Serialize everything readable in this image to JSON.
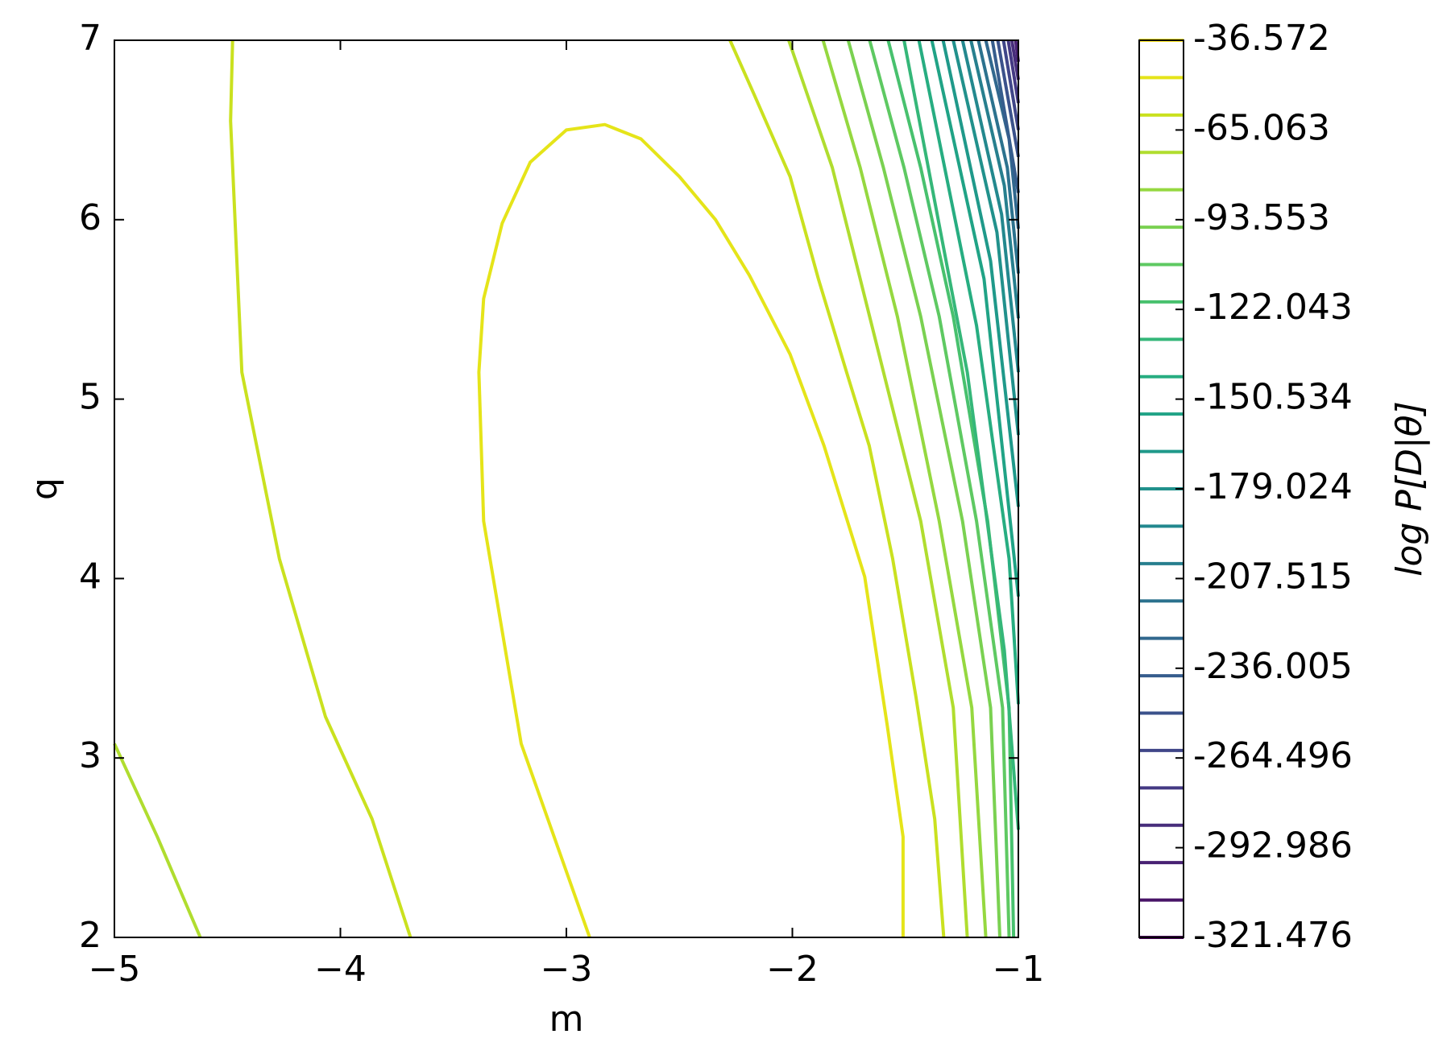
{
  "chart_data": {
    "type": "contour",
    "xlabel": "m",
    "ylabel": "q",
    "colorbar_label": "log  P[D|θ]",
    "xlim": [
      -5,
      -1
    ],
    "ylim": [
      2,
      7
    ],
    "xticks": [
      {
        "value": -5,
        "label": "−5"
      },
      {
        "value": -4,
        "label": "−4"
      },
      {
        "value": -3,
        "label": "−3"
      },
      {
        "value": -2,
        "label": "−2"
      },
      {
        "value": -1,
        "label": "−1"
      }
    ],
    "yticks": [
      2,
      3,
      4,
      5,
      6,
      7
    ],
    "clim": [
      -321.476,
      -36.572
    ],
    "cticks": [
      -36.572,
      -65.063,
      -93.553,
      -122.043,
      -150.534,
      -179.024,
      -207.515,
      -236.005,
      -264.496,
      -292.986,
      -321.476
    ],
    "levels": [
      -36.572,
      -48.443,
      -60.314,
      -72.185,
      -84.056,
      -95.927,
      -107.798,
      -119.669,
      -131.54,
      -143.411,
      -155.282,
      -167.153,
      -179.024,
      -190.895,
      -202.766,
      -214.637,
      -226.508,
      -238.379,
      -250.25,
      -262.121,
      -273.992,
      -285.863,
      -297.734,
      -309.605,
      -321.476
    ],
    "colors": [
      "#fde725",
      "#e5e419",
      "#cae11f",
      "#b0dd2f",
      "#95d840",
      "#7ad151",
      "#5ec962",
      "#48c16e",
      "#35b779",
      "#27ad81",
      "#20a386",
      "#1f998a",
      "#21918c",
      "#23888e",
      "#277f8e",
      "#2c728e",
      "#31688e",
      "#365d8d",
      "#3b528b",
      "#404688",
      "#443983",
      "#472d7b",
      "#482173",
      "#481467",
      "#440154"
    ],
    "contours": [
      {
        "level": -48.443,
        "x": [
          -2.897,
          -3.2,
          -3.366,
          -3.387,
          -3.366,
          -3.284,
          -3.16,
          -3.0,
          -2.83,
          -2.67,
          -2.5,
          -2.34,
          -2.19,
          -2.01,
          -1.86,
          -1.68,
          -1.58,
          -1.51,
          -1.51
        ],
        "y": [
          2,
          3.08,
          4.32,
          5.15,
          5.56,
          5.98,
          6.32,
          6.5,
          6.53,
          6.45,
          6.24,
          6.0,
          5.69,
          5.25,
          4.74,
          4.01,
          3.18,
          2.56,
          2
        ]
      },
      {
        "level": -60.314,
        "x": [
          -4.477,
          -4.486,
          -4.436,
          -4.27,
          -4.066,
          -3.86,
          -3.69
        ],
        "y": [
          7,
          6.55,
          5.15,
          4.11,
          3.23,
          2.66,
          2
        ]
      },
      {
        "level": -60.314,
        "x": [
          -2.276,
          -2.17,
          -2.01,
          -1.885,
          -1.76,
          -1.66,
          -1.556,
          -1.453,
          -1.37,
          -1.33
        ],
        "y": [
          7,
          6.7,
          6.24,
          5.67,
          5.15,
          4.74,
          4.11,
          3.34,
          2.66,
          2
        ]
      },
      {
        "level": -72.185,
        "x": [
          -5,
          -4.81,
          -4.62
        ],
        "y": [
          3.08,
          2.56,
          2
        ]
      },
      {
        "level": -72.185,
        "x": [
          -2.016,
          -1.823,
          -1.658,
          -1.432,
          -1.288,
          -1.226
        ],
        "y": [
          7,
          6.29,
          5.46,
          4.32,
          3.28,
          2
        ]
      },
      {
        "level": -84.056,
        "x": [
          -1.864,
          -1.7,
          -1.535,
          -1.35,
          -1.206,
          -1.144
        ],
        "y": [
          7,
          6.29,
          5.46,
          4.32,
          3.28,
          2
        ]
      },
      {
        "level": -95.927,
        "x": [
          -1.753,
          -1.597,
          -1.432,
          -1.247,
          -1.123,
          -1.082
        ],
        "y": [
          7,
          6.29,
          5.46,
          4.32,
          3.28,
          2
        ]
      },
      {
        "level": -107.798,
        "x": [
          -1.658,
          -1.506,
          -1.35,
          -1.185,
          -1.07,
          -1.041
        ],
        "y": [
          7,
          6.29,
          5.46,
          4.32,
          3.28,
          2
        ]
      },
      {
        "level": -119.669,
        "x": [
          -1.576,
          -1.432,
          -1.288,
          -1.136,
          -1.041,
          -1.021
        ],
        "y": [
          7,
          6.29,
          5.46,
          4.32,
          3.28,
          2
        ]
      },
      {
        "level": -131.54,
        "x": [
          -1.506,
          -1.226,
          -1.062,
          -1
        ],
        "y": [
          7,
          5.15,
          3.6,
          2.6
        ]
      },
      {
        "level": -143.411,
        "x": [
          -1.44,
          -1.185,
          -1.041,
          -1
        ],
        "y": [
          7,
          5.41,
          4.11,
          3.3
        ]
      },
      {
        "level": -155.282,
        "x": [
          -1.383,
          -1.152,
          -1
        ],
        "y": [
          7,
          5.67,
          3.9
        ]
      },
      {
        "level": -167.153,
        "x": [
          -1.333,
          -1.123,
          -1
        ],
        "y": [
          7,
          5.77,
          4.4
        ]
      },
      {
        "level": -179.024,
        "x": [
          -1.288,
          -1.095,
          -1
        ],
        "y": [
          7,
          5.93,
          4.8
        ]
      },
      {
        "level": -190.895,
        "x": [
          -1.247,
          -1.074,
          -1
        ],
        "y": [
          7,
          6.03,
          5.15
        ]
      },
      {
        "level": -202.766,
        "x": [
          -1.21,
          -1.062,
          -1
        ],
        "y": [
          7,
          6.19,
          5.45
        ]
      },
      {
        "level": -214.637,
        "x": [
          -1.177,
          -1.049,
          -1
        ],
        "y": [
          7,
          6.29,
          5.7
        ]
      },
      {
        "level": -226.508,
        "x": [
          -1.144,
          -1.041,
          -1
        ],
        "y": [
          7,
          6.45,
          5.95
        ]
      },
      {
        "level": -238.379,
        "x": [
          -1.115,
          -1
        ],
        "y": [
          7,
          6.15
        ]
      },
      {
        "level": -250.25,
        "x": [
          -1.091,
          -1
        ],
        "y": [
          7,
          6.35
        ]
      },
      {
        "level": -262.121,
        "x": [
          -1.066,
          -1
        ],
        "y": [
          7,
          6.5
        ]
      },
      {
        "level": -273.992,
        "x": [
          -1.045,
          -1
        ],
        "y": [
          7,
          6.65
        ]
      },
      {
        "level": -285.863,
        "x": [
          -1.029,
          -1
        ],
        "y": [
          7,
          6.78
        ]
      },
      {
        "level": -297.734,
        "x": [
          -1.012,
          -1
        ],
        "y": [
          7,
          6.88
        ]
      }
    ]
  }
}
